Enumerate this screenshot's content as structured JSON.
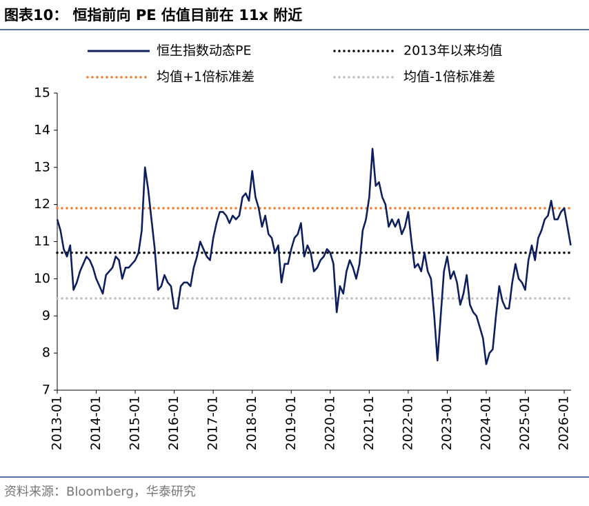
{
  "header": {
    "title": "图表10： 恒指前向 PE 估值目前在 11x 附近"
  },
  "chart_data": {
    "type": "line",
    "categories": [
      "2013-01",
      null,
      null,
      null,
      null,
      null,
      null,
      null,
      null,
      null,
      null,
      null,
      "2014-01",
      null,
      null,
      null,
      null,
      null,
      null,
      null,
      null,
      null,
      null,
      null,
      "2015-01",
      null,
      null,
      null,
      null,
      null,
      null,
      null,
      null,
      null,
      null,
      null,
      "2016-01",
      null,
      null,
      null,
      null,
      null,
      null,
      null,
      null,
      null,
      null,
      null,
      "2017-01",
      null,
      null,
      null,
      null,
      null,
      null,
      null,
      null,
      null,
      null,
      null,
      "2018-01",
      null,
      null,
      null,
      null,
      null,
      null,
      null,
      null,
      null,
      null,
      null,
      "2019-01",
      null,
      null,
      null,
      null,
      null,
      null,
      null,
      null,
      null,
      null,
      null,
      "2020-01",
      null,
      null,
      null,
      null,
      null,
      null,
      null,
      null,
      null,
      null,
      null,
      "2021-01",
      null,
      null,
      null,
      null,
      null,
      null,
      null,
      null,
      null,
      null,
      null,
      "2022-01",
      null,
      null,
      null,
      null,
      null,
      null,
      null,
      null,
      null,
      null,
      null,
      "2023-01",
      null,
      null,
      null,
      null,
      null,
      null,
      null,
      null,
      null,
      null,
      null,
      "2024-01",
      null,
      null,
      null,
      null,
      null,
      null,
      null,
      null,
      null,
      null,
      null,
      "2025-01",
      null,
      null,
      null,
      null,
      null,
      null,
      null,
      null,
      null,
      null,
      null,
      "2026-01",
      null,
      null
    ],
    "series": [
      {
        "name": "恒生指数动态PE",
        "color": "#0d1f5c",
        "values": [
          11.6,
          11.3,
          10.8,
          10.6,
          10.9,
          9.7,
          9.9,
          10.2,
          10.4,
          10.6,
          10.5,
          10.3,
          10.0,
          9.8,
          9.6,
          10.1,
          10.2,
          10.3,
          10.6,
          10.5,
          10.0,
          10.3,
          10.3,
          10.4,
          10.5,
          10.7,
          11.3,
          13.0,
          12.4,
          11.6,
          10.8,
          9.7,
          9.8,
          10.1,
          9.9,
          9.8,
          9.2,
          9.2,
          9.8,
          9.9,
          9.9,
          9.8,
          10.3,
          10.6,
          11.0,
          10.8,
          10.6,
          10.5,
          11.1,
          11.5,
          11.8,
          11.8,
          11.7,
          11.5,
          11.7,
          11.6,
          11.7,
          12.2,
          12.3,
          12.1,
          12.9,
          12.2,
          11.9,
          11.4,
          11.7,
          11.2,
          11.1,
          10.7,
          10.9,
          9.9,
          10.4,
          10.4,
          10.8,
          11.1,
          11.2,
          11.5,
          10.6,
          10.9,
          10.7,
          10.2,
          10.3,
          10.5,
          10.6,
          10.8,
          10.7,
          10.4,
          9.1,
          9.8,
          9.6,
          10.2,
          10.5,
          10.3,
          10.0,
          10.4,
          11.3,
          11.6,
          12.2,
          13.5,
          12.5,
          12.6,
          12.2,
          12.0,
          11.4,
          11.6,
          11.4,
          11.6,
          11.2,
          11.4,
          11.8,
          11.0,
          10.3,
          10.4,
          10.2,
          10.7,
          10.2,
          10.0,
          9.0,
          7.8,
          9.0,
          10.2,
          10.6,
          10.0,
          10.2,
          9.9,
          9.3,
          9.6,
          10.1,
          9.3,
          9.1,
          9.0,
          8.7,
          8.4,
          7.7,
          8.0,
          8.1,
          9.0,
          9.8,
          9.4,
          9.2,
          9.2,
          9.9,
          10.4,
          10.0,
          9.9,
          9.7,
          10.5,
          10.9,
          10.5,
          11.1,
          11.3,
          11.6,
          11.7,
          12.1,
          11.6,
          11.6,
          11.8,
          11.9,
          11.4,
          10.9
        ]
      }
    ],
    "hlines": [
      {
        "name": "2013年以来均值",
        "color": "#000000",
        "value": 10.7
      },
      {
        "name": "均值+1倍标准差",
        "color": "#ed7d31",
        "value": 11.9
      },
      {
        "name": "均值-1倍标准差",
        "color": "#bfbfbf",
        "value": 9.47
      }
    ],
    "ylim": [
      7,
      15
    ],
    "yticks": [
      7,
      8,
      9,
      10,
      11,
      12,
      13,
      14,
      15
    ]
  },
  "footer": {
    "source": "资料来源：Bloomberg，华泰研究"
  }
}
